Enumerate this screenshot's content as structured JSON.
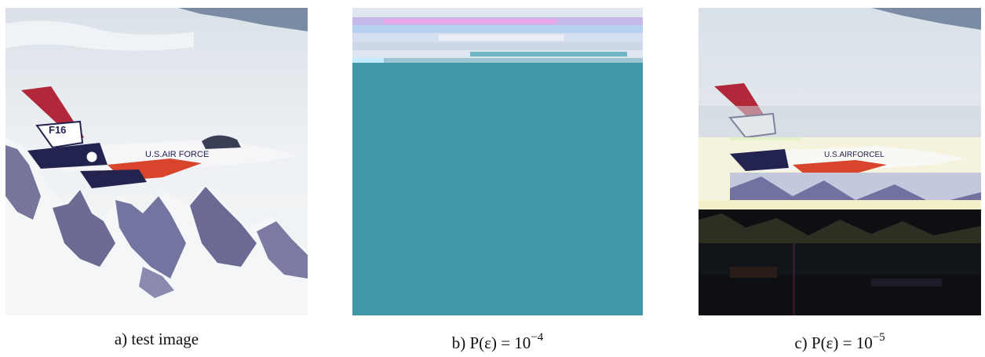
{
  "captions": {
    "a": {
      "text": "a) test image"
    },
    "b": {
      "prefix": "b)",
      "expr": "P(ε) = 10",
      "exponent": "−4"
    },
    "c": {
      "prefix": "c)",
      "expr": "P(ε) = 10",
      "exponent": "−5"
    }
  },
  "colors": {
    "sky": "#e7ecef",
    "snow": "#f2f4f6",
    "mountain": "#6f6f96",
    "corrupted_teal": "#3f98a6",
    "corrupted_dark": "#0d0f12",
    "tail_red": "#b0283a",
    "fuselage_navy": "#23234f"
  },
  "panels": [
    {
      "name": "test-image",
      "content": "F-16 aircraft over snowy mountains"
    },
    {
      "name": "decoded-image-p1e-4",
      "content": "mostly lost, teal fill"
    },
    {
      "name": "decoded-image-p1e-5",
      "content": "partially corrupted with glitches"
    }
  ]
}
